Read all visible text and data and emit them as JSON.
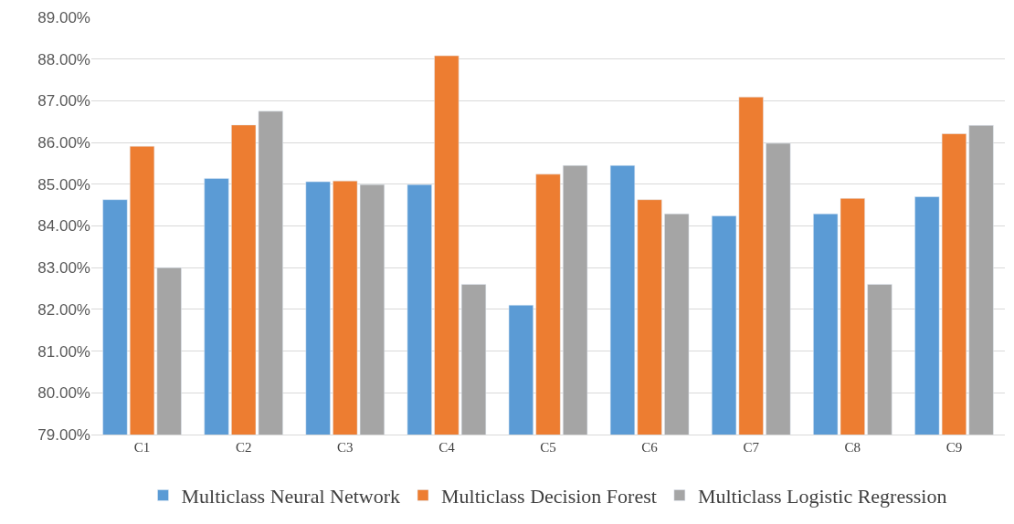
{
  "chart_data": {
    "type": "bar",
    "categories": [
      "C1",
      "C2",
      "C3",
      "C4",
      "C5",
      "C6",
      "C7",
      "C8",
      "C9"
    ],
    "series": [
      {
        "name": "Multiclass Neural Network",
        "color": "#5b9bd5",
        "values": [
          84.63,
          85.14,
          85.06,
          84.99,
          82.1,
          85.45,
          84.24,
          84.29,
          84.7
        ]
      },
      {
        "name": "Multiclass Decision Forest",
        "color": "#ed7d31",
        "values": [
          85.91,
          86.42,
          85.08,
          88.08,
          85.24,
          84.63,
          87.09,
          84.66,
          86.21
        ]
      },
      {
        "name": "Multiclass Logistic Regression",
        "color": "#a5a5a5",
        "values": [
          83.0,
          86.75,
          84.99,
          82.6,
          85.45,
          84.29,
          85.98,
          82.6,
          86.41
        ]
      }
    ],
    "ylim": [
      79,
      89
    ],
    "yticks": [
      {
        "value": 79,
        "label": "79.00%"
      },
      {
        "value": 80,
        "label": "80.00%"
      },
      {
        "value": 81,
        "label": "81.00%"
      },
      {
        "value": 82,
        "label": "82.00%"
      },
      {
        "value": 83,
        "label": "83.00%"
      },
      {
        "value": 84,
        "label": "84.00%"
      },
      {
        "value": 85,
        "label": "85.00%"
      },
      {
        "value": 86,
        "label": "86.00%"
      },
      {
        "value": 87,
        "label": "87.00%"
      },
      {
        "value": 88,
        "label": "88.00%"
      },
      {
        "value": 89,
        "label": "89.00%"
      }
    ],
    "grid": "y",
    "legend": "bottom"
  }
}
